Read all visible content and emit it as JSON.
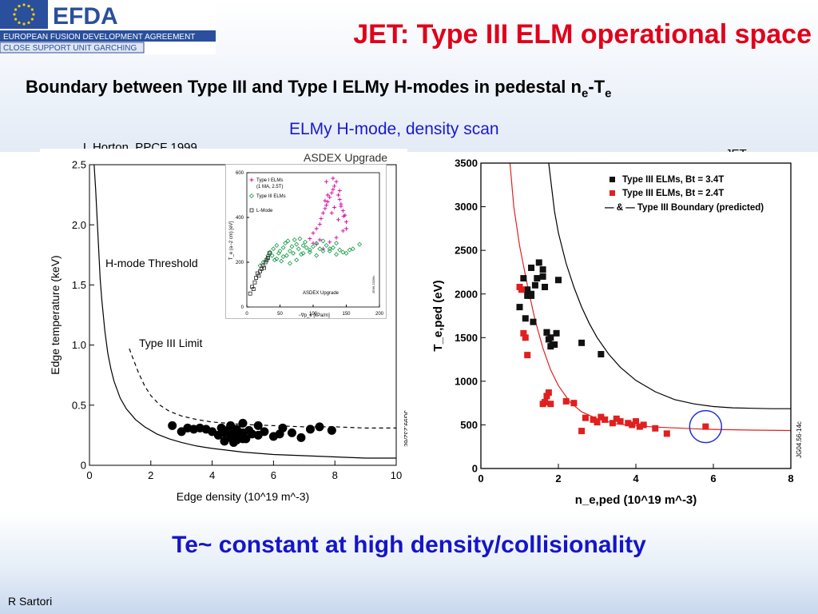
{
  "header": {
    "org_name": "EFDA",
    "org_full": "EUROPEAN FUSION DEVELOPMENT AGREEMENT",
    "org_unit": "CLOSE SUPPORT UNIT GARCHING",
    "title": "JET: Type III ELM operational space"
  },
  "subtitle": {
    "text": "Boundary between Type III and Type I ELMy H-modes in pedestal n",
    "sub1": "e",
    "mid": "-T",
    "sub2": "e"
  },
  "plot_caption": "ELMy H-mode, density scan",
  "left_ref": "L Horton, PPCF 1999",
  "jet_label": "JET",
  "conclusion": "Te~ constant at high density/collisionality",
  "author": "R Sartori",
  "colors": {
    "title": "#e0001a",
    "accent_blue": "#1515c8",
    "typeI": "#d4009e",
    "typeIII_inset": "#119944",
    "jet_red": "#e0201e"
  },
  "chart_data": [
    {
      "type": "scatter",
      "title": "ASDEX Upgrade",
      "xlabel": "Edge density (10^19 m^-3)",
      "ylabel": "Edge temperature (keV)",
      "xlim": [
        0,
        10
      ],
      "ylim": [
        0,
        2.5
      ],
      "xticks": [
        "0",
        "2",
        "4",
        "6",
        "8",
        "10"
      ],
      "yticks": [
        "0",
        "0.5",
        "1.0",
        "1.5",
        "2.0",
        "2.5"
      ],
      "annotations": [
        "H-mode Threshold",
        "Type III Limit"
      ],
      "side_code": "JG99.232/6c",
      "series": [
        {
          "name": "",
          "kind": "points",
          "x": [
            2.7,
            3.0,
            3.2,
            3.4,
            3.6,
            3.8,
            4.0,
            4.2,
            4.3,
            4.4,
            4.5,
            4.6,
            4.6,
            4.7,
            4.8,
            4.8,
            4.9,
            5.0,
            5.0,
            5.1,
            5.2,
            5.3,
            5.5,
            5.7,
            6.0,
            6.3,
            6.6,
            6.9,
            7.2,
            7.5,
            7.9,
            4.4,
            4.7,
            5.0,
            5.5,
            6.2
          ],
          "y": [
            0.33,
            0.28,
            0.31,
            0.3,
            0.31,
            0.3,
            0.28,
            0.25,
            0.31,
            0.27,
            0.29,
            0.23,
            0.33,
            0.26,
            0.21,
            0.3,
            0.24,
            0.27,
            0.35,
            0.22,
            0.29,
            0.26,
            0.25,
            0.28,
            0.24,
            0.31,
            0.27,
            0.23,
            0.3,
            0.32,
            0.29,
            0.2,
            0.19,
            0.22,
            0.33,
            0.26
          ]
        },
        {
          "name": "",
          "kind": "solid-curve",
          "x": [
            0.15,
            0.2,
            0.25,
            0.3,
            0.35,
            0.4,
            0.5,
            0.6,
            0.7,
            0.8,
            1.0,
            1.2,
            1.5,
            1.8,
            2.2,
            2.6,
            3.0,
            3.5,
            4.0,
            5.0,
            6.0,
            7.0,
            8.0,
            9.0,
            10.0
          ],
          "y": [
            2.5,
            2.3,
            2.05,
            1.8,
            1.55,
            1.38,
            1.12,
            0.93,
            0.8,
            0.7,
            0.56,
            0.47,
            0.38,
            0.32,
            0.26,
            0.22,
            0.19,
            0.16,
            0.14,
            0.11,
            0.09,
            0.08,
            0.07,
            0.06,
            0.06
          ]
        },
        {
          "name": "",
          "kind": "dashed-curve",
          "x": [
            1.3,
            1.4,
            1.6,
            1.8,
            2.0,
            2.3,
            2.6,
            3.0,
            3.5,
            4.0,
            4.5,
            5.0,
            6.0,
            7.0,
            8.0,
            9.0,
            10.0
          ],
          "y": [
            0.97,
            0.9,
            0.77,
            0.66,
            0.58,
            0.5,
            0.45,
            0.41,
            0.38,
            0.36,
            0.35,
            0.34,
            0.33,
            0.32,
            0.32,
            0.31,
            0.31
          ]
        }
      ]
    },
    {
      "type": "scatter",
      "title": "ASDEX Upgrade",
      "xlabel": "−∇p_e [kPa/m]",
      "ylabel": "T_e (a−2 cm) [eV]",
      "xlim": [
        0,
        200
      ],
      "ylim": [
        0,
        600
      ],
      "xticks": [
        "0",
        "50",
        "100",
        "150",
        "200"
      ],
      "yticks": [
        "0",
        "200",
        "400",
        "600"
      ],
      "legend": [
        "Type I ELMs",
        "(1 MA, 2.5T)",
        "Type III ELMs",
        "L-Mode"
      ],
      "side_code": "JG99.232/6c",
      "series": [
        {
          "name": "Type I ELMs",
          "marker": "+",
          "x": [
            95,
            100,
            105,
            110,
            112,
            115,
            118,
            120,
            122,
            125,
            128,
            130,
            132,
            135,
            138,
            140,
            142,
            145,
            148,
            150,
            115,
            125,
            135,
            145,
            120,
            130,
            140,
            105,
            110,
            150,
            128,
            132,
            138,
            100,
            118,
            122,
            142,
            146
          ],
          "y": [
            305,
            330,
            350,
            370,
            395,
            420,
            440,
            455,
            470,
            490,
            510,
            525,
            540,
            560,
            500,
            480,
            460,
            430,
            410,
            380,
            260,
            290,
            310,
            340,
            560,
            575,
            520,
            280,
            300,
            350,
            420,
            445,
            390,
            285,
            475,
            500,
            450,
            405
          ]
        },
        {
          "name": "Type III ELMs",
          "marker": "diamond",
          "x": [
            20,
            25,
            30,
            32,
            35,
            38,
            40,
            42,
            45,
            48,
            50,
            52,
            55,
            58,
            60,
            62,
            65,
            68,
            70,
            72,
            75,
            78,
            80,
            82,
            85,
            88,
            90,
            95,
            100,
            105,
            110,
            115,
            120,
            125,
            130,
            135,
            140,
            150,
            160,
            170,
            45,
            55,
            65,
            75,
            85,
            95,
            105,
            115,
            125,
            135,
            145,
            155
          ],
          "y": [
            185,
            200,
            215,
            230,
            245,
            230,
            260,
            210,
            275,
            240,
            250,
            205,
            265,
            285,
            230,
            295,
            250,
            270,
            240,
            300,
            280,
            260,
            305,
            235,
            275,
            290,
            265,
            255,
            270,
            285,
            260,
            295,
            275,
            250,
            265,
            285,
            255,
            240,
            260,
            280,
            215,
            225,
            195,
            210,
            240,
            245,
            230,
            250,
            260,
            235,
            245,
            255
          ]
        },
        {
          "name": "L-Mode",
          "marker": "square",
          "x": [
            5,
            8,
            10,
            12,
            14,
            16,
            18,
            20,
            22,
            24,
            26,
            28,
            30,
            32,
            34
          ],
          "y": [
            60,
            90,
            80,
            110,
            130,
            150,
            140,
            160,
            170,
            185,
            175,
            200,
            210,
            220,
            240
          ]
        }
      ]
    },
    {
      "type": "scatter",
      "title": "",
      "xlabel": "n_e,ped (10^19 m^-3)",
      "ylabel": "T_e,ped (eV)",
      "xlim": [
        0,
        8
      ],
      "ylim": [
        0,
        3500
      ],
      "xticks": [
        "0",
        "2",
        "4",
        "6",
        "8"
      ],
      "yticks": [
        "0",
        "500",
        "1000",
        "1500",
        "2000",
        "2500",
        "3000",
        "3500"
      ],
      "legend": [
        "Type III ELMs, Bt = 3.4T",
        "Type III ELMs, Bt = 2.4T",
        "— & — Type III Boundary (predicted)"
      ],
      "side_code": "JG04.56-14c",
      "series": [
        {
          "name": "Type III ELMs, Bt = 3.4T",
          "x": [
            1.0,
            1.1,
            1.2,
            1.3,
            1.3,
            1.4,
            1.45,
            1.5,
            1.6,
            1.6,
            1.65,
            1.7,
            1.75,
            1.8,
            1.85,
            1.9,
            1.95,
            2.0,
            1.2,
            1.3,
            1.7,
            1.8,
            2.6,
            3.1,
            1.15,
            1.35
          ],
          "y": [
            1850,
            2180,
            2050,
            2000,
            2300,
            2100,
            2180,
            2360,
            2280,
            2200,
            2080,
            1560,
            1480,
            1500,
            1420,
            1420,
            1550,
            2160,
            1980,
            1980,
            1560,
            1400,
            1440,
            1310,
            1720,
            1680
          ]
        },
        {
          "name": "Type III ELMs, Bt = 2.4T",
          "x": [
            1.0,
            1.05,
            1.1,
            1.15,
            1.2,
            1.6,
            1.65,
            1.7,
            1.75,
            1.8,
            2.2,
            2.4,
            2.6,
            2.7,
            2.9,
            3.0,
            3.1,
            3.2,
            3.4,
            3.5,
            3.6,
            3.8,
            3.9,
            4.0,
            4.1,
            4.2,
            4.5,
            4.8,
            5.8
          ],
          "y": [
            2080,
            2050,
            1550,
            1500,
            1300,
            740,
            760,
            830,
            870,
            740,
            770,
            750,
            430,
            580,
            560,
            530,
            590,
            560,
            520,
            570,
            540,
            520,
            500,
            540,
            480,
            500,
            460,
            400,
            480
          ]
        },
        {
          "name": "Type III Boundary (predicted) 3.4T",
          "kind": "curve",
          "x": [
            1.75,
            1.9,
            2.0,
            2.2,
            2.4,
            2.6,
            2.8,
            3.0,
            3.3,
            3.6,
            4.0,
            4.5,
            5.0,
            5.5,
            6.0,
            6.5,
            7.0,
            7.5,
            8.0
          ],
          "y": [
            3500,
            2950,
            2700,
            2350,
            2080,
            1850,
            1660,
            1500,
            1310,
            1160,
            1010,
            880,
            790,
            740,
            710,
            695,
            690,
            685,
            685
          ]
        },
        {
          "name": "Type III Boundary (predicted) 2.4T",
          "kind": "curve",
          "x": [
            0.75,
            0.85,
            1.0,
            1.2,
            1.4,
            1.6,
            1.8,
            2.0,
            2.3,
            2.6,
            3.0,
            3.5,
            4.0,
            4.5,
            5.0,
            5.5,
            6.0,
            7.0,
            8.0
          ],
          "y": [
            3500,
            3000,
            2550,
            2100,
            1700,
            1380,
            1130,
            950,
            760,
            650,
            570,
            510,
            490,
            475,
            465,
            455,
            448,
            440,
            435
          ]
        }
      ]
    }
  ]
}
